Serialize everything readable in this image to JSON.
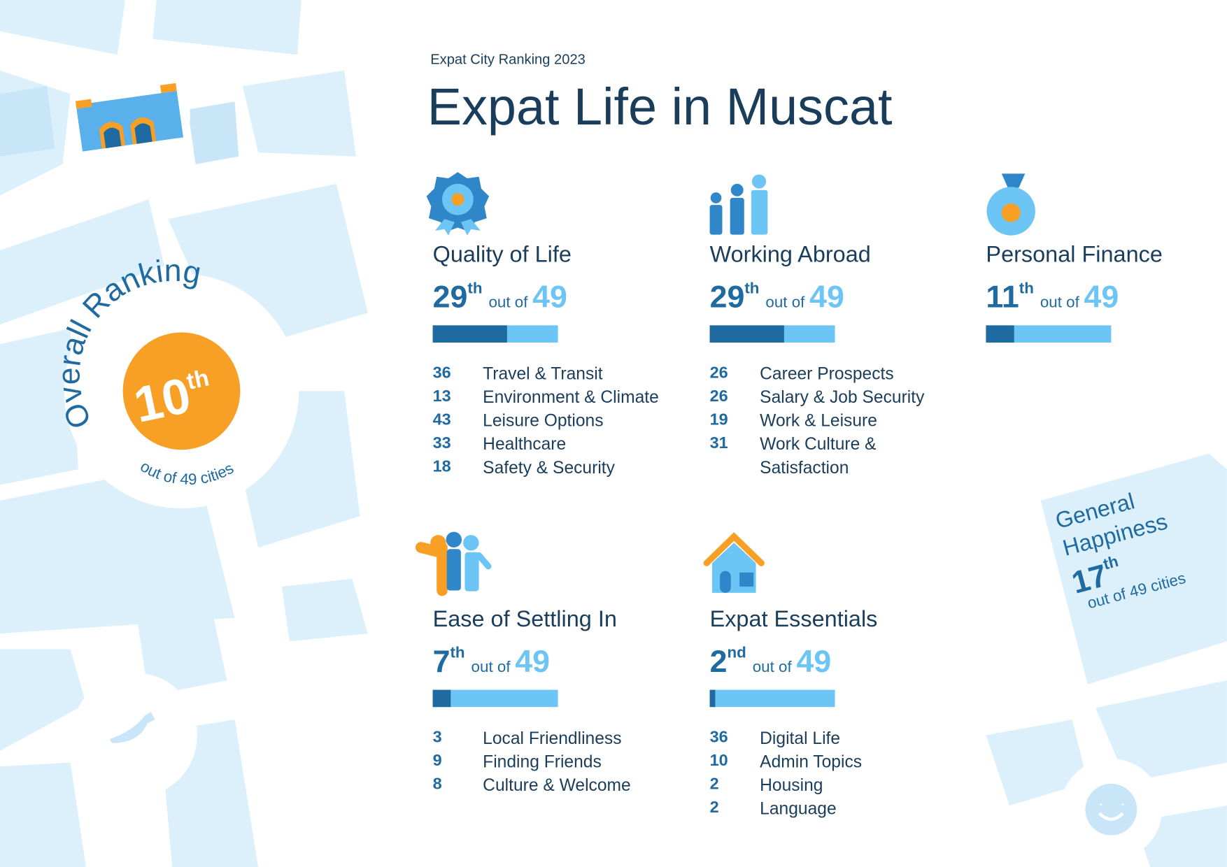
{
  "header": {
    "subtitle": "Expat City Ranking 2023",
    "title": "Expat Life in Muscat"
  },
  "overall": {
    "label": "Overall Ranking",
    "rank": 10,
    "suffix": "th",
    "note": "out of 49 cities"
  },
  "general_happiness": {
    "label": "General Happiness",
    "rank": 17,
    "suffix": "th",
    "note": "out of 49 cities"
  },
  "categories": [
    {
      "name": "Quality of Life",
      "rank": 29,
      "suffix": "th",
      "out_of": "out of",
      "total": 49,
      "subcategories": [
        {
          "rank": 36,
          "name": "Travel & Transit"
        },
        {
          "rank": 13,
          "name": "Environment & Climate"
        },
        {
          "rank": 43,
          "name": "Leisure Options"
        },
        {
          "rank": 33,
          "name": "Healthcare"
        },
        {
          "rank": 18,
          "name": "Safety & Security"
        }
      ]
    },
    {
      "name": "Working Abroad",
      "rank": 29,
      "suffix": "th",
      "out_of": "out of",
      "total": 49,
      "subcategories": [
        {
          "rank": 26,
          "name": "Career Prospects"
        },
        {
          "rank": 26,
          "name": "Salary & Job Security"
        },
        {
          "rank": 19,
          "name": "Work & Leisure"
        },
        {
          "rank": 31,
          "name": "Work Culture & Satisfaction"
        }
      ]
    },
    {
      "name": "Personal Finance",
      "rank": 11,
      "suffix": "th",
      "out_of": "out of",
      "total": 49,
      "subcategories": []
    },
    {
      "name": "Ease of Settling In",
      "rank": 7,
      "suffix": "th",
      "out_of": "out of",
      "total": 49,
      "subcategories": [
        {
          "rank": 3,
          "name": "Local Friendliness"
        },
        {
          "rank": 9,
          "name": "Finding Friends"
        },
        {
          "rank": 8,
          "name": "Culture & Welcome"
        }
      ]
    },
    {
      "name": "Expat Essentials",
      "rank": 2,
      "suffix": "nd",
      "out_of": "out of",
      "total": 49,
      "subcategories": [
        {
          "rank": 36,
          "name": "Digital Life"
        },
        {
          "rank": 10,
          "name": "Admin Topics"
        },
        {
          "rank": 2,
          "name": "Housing"
        },
        {
          "rank": 2,
          "name": "Language"
        }
      ]
    }
  ]
}
